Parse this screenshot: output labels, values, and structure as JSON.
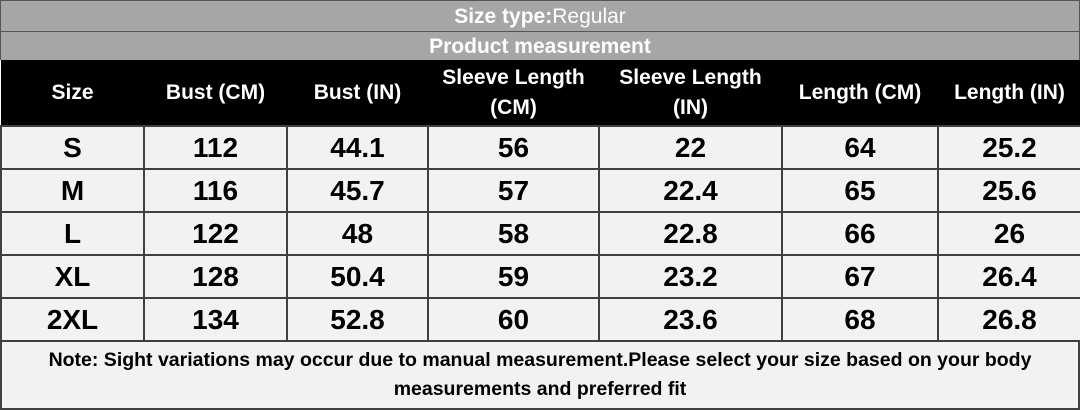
{
  "header": {
    "title_label": "Size type:",
    "title_value": "Regular",
    "subtitle": "Product measurement"
  },
  "table": {
    "columns": [
      "Size",
      "Bust (CM)",
      "Bust (IN)",
      "Sleeve Length (CM)",
      "Sleeve Length (IN)",
      "Length (CM)",
      "Length (IN)"
    ],
    "rows": [
      [
        "S",
        112,
        44.1,
        56,
        22,
        64,
        25.2
      ],
      [
        "M",
        116,
        45.7,
        57,
        22.4,
        65,
        25.6
      ],
      [
        "L",
        122,
        48,
        58,
        22.8,
        66,
        26
      ],
      [
        "XL",
        128,
        50.4,
        59,
        23.2,
        67,
        26.4
      ],
      [
        "2XL",
        134,
        52.8,
        60,
        23.6,
        68,
        26.8
      ]
    ]
  },
  "note": "Note: Sight variations may occur due to manual measurement.Please select your size based on your body measurements and preferred fit"
}
